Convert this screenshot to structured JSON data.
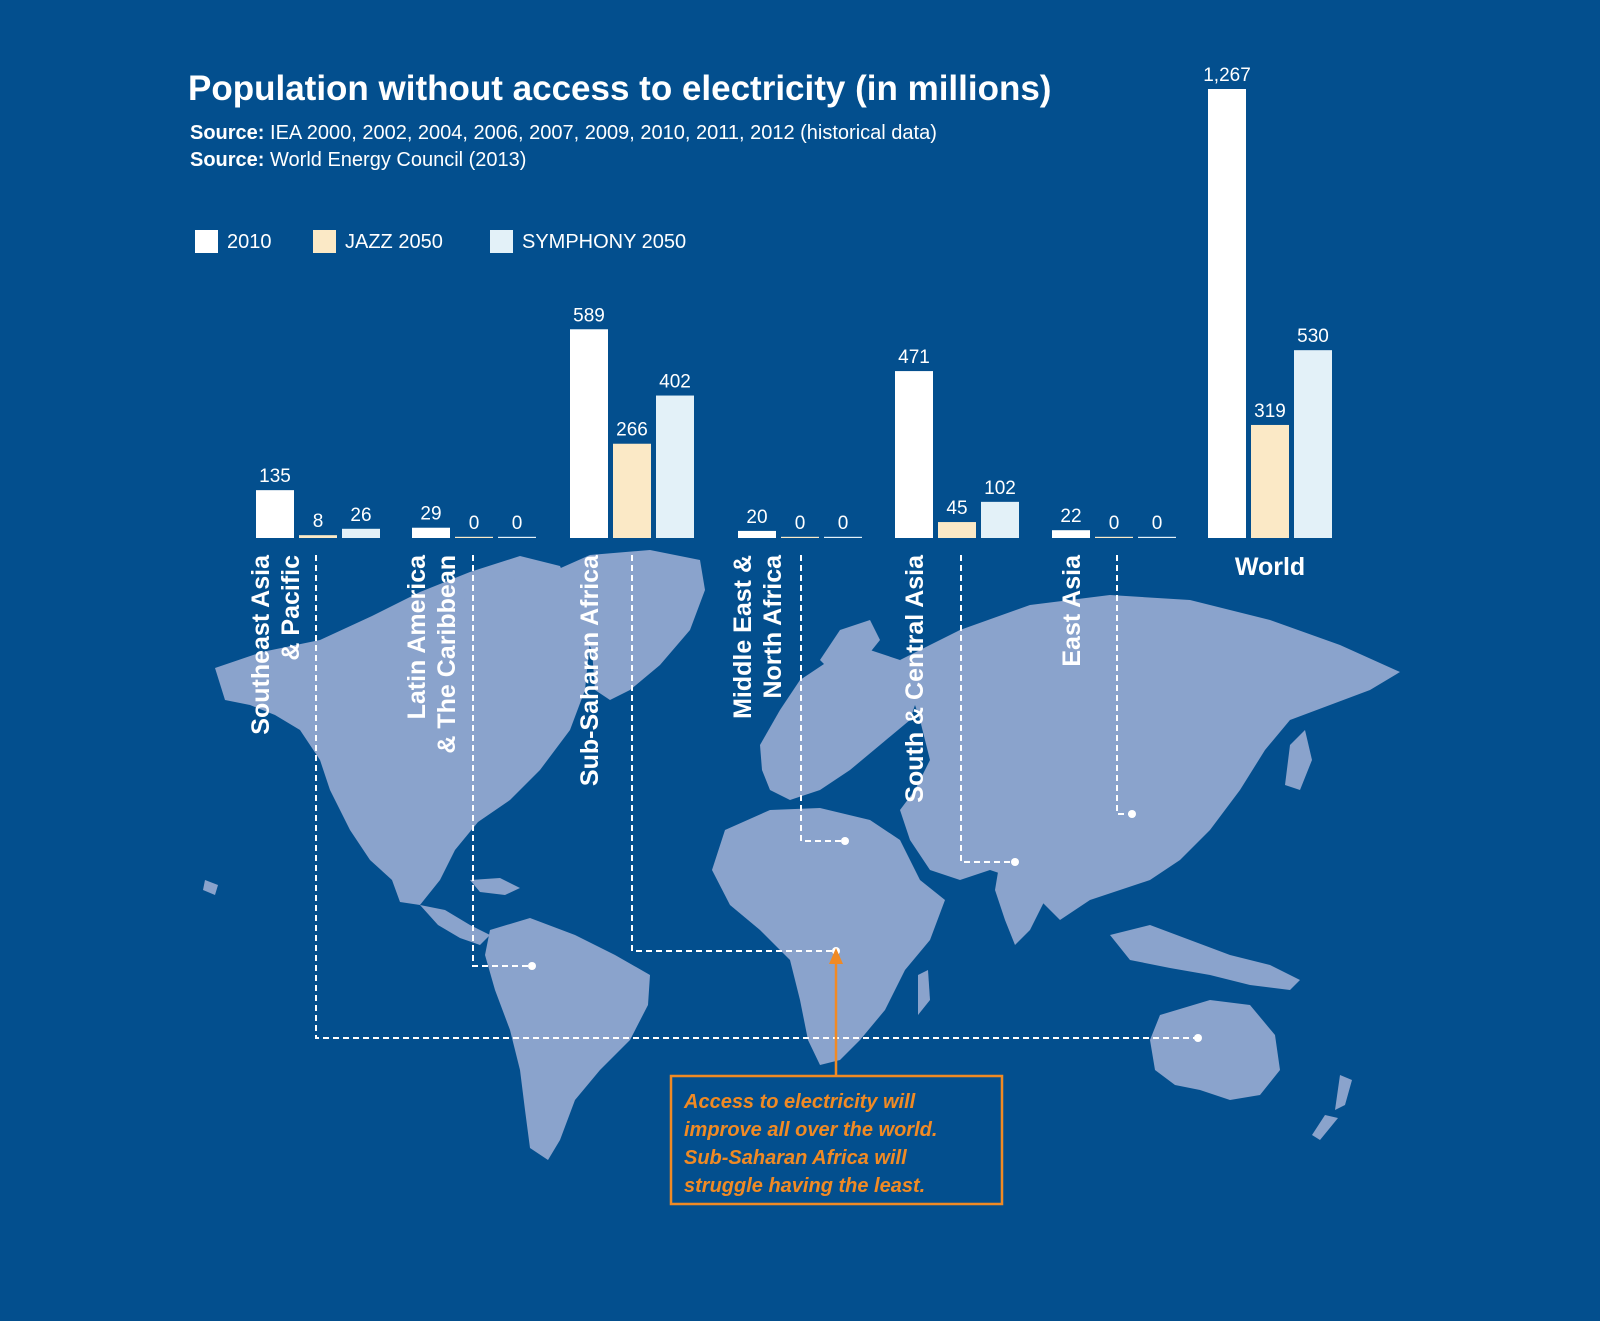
{
  "chart_data": {
    "type": "bar",
    "title": "Population without access to electricity (in millions)",
    "sources": [
      {
        "label": "Source:",
        "text": "IEA 2000, 2002, 2004, 2006, 2007, 2009, 2010, 2011, 2012 (historical data)"
      },
      {
        "label": "Source:",
        "text": "World Energy Council (2013)"
      }
    ],
    "legend_position": "top-left",
    "grid": false,
    "ylim": [
      0,
      1267
    ],
    "categories": [
      {
        "lines": [
          "Southeast Asia",
          "& Pacific"
        ],
        "orientation": "vertical"
      },
      {
        "lines": [
          "Latin America",
          "& The Caribbean"
        ],
        "orientation": "vertical"
      },
      {
        "lines": [
          "Sub-Saharan Africa"
        ],
        "orientation": "vertical"
      },
      {
        "lines": [
          "Middle East &",
          "North Africa"
        ],
        "orientation": "vertical"
      },
      {
        "lines": [
          "South & Central Asia"
        ],
        "orientation": "vertical"
      },
      {
        "lines": [
          "East Asia"
        ],
        "orientation": "vertical"
      },
      {
        "lines": [
          "World"
        ],
        "orientation": "horizontal"
      }
    ],
    "series": [
      {
        "name": "2010",
        "color": "#ffffff",
        "values": [
          135,
          29,
          589,
          20,
          471,
          22,
          1267
        ],
        "labels": [
          "135",
          "29",
          "589",
          "20",
          "471",
          "22",
          "1,267"
        ]
      },
      {
        "name": "JAZZ 2050",
        "color": "#fbe9c6",
        "values": [
          8,
          0,
          266,
          0,
          45,
          0,
          319
        ],
        "labels": [
          "8",
          "0",
          "266",
          "0",
          "45",
          "0",
          "319"
        ]
      },
      {
        "name": "SYMPHONY 2050",
        "color": "#e3f1f8",
        "values": [
          26,
          0,
          402,
          0,
          102,
          0,
          530
        ],
        "labels": [
          "26",
          "0",
          "402",
          "0",
          "102",
          "0",
          "530"
        ]
      }
    ],
    "callout": [
      "Access to electricity will",
      "improve all over the world.",
      "Sub-Saharan Africa will",
      "struggle having the least."
    ],
    "colors": {
      "background": "#034f8e",
      "map": "#8aa3cc",
      "accent": "#f08a24",
      "connector": "#ffffff"
    }
  }
}
